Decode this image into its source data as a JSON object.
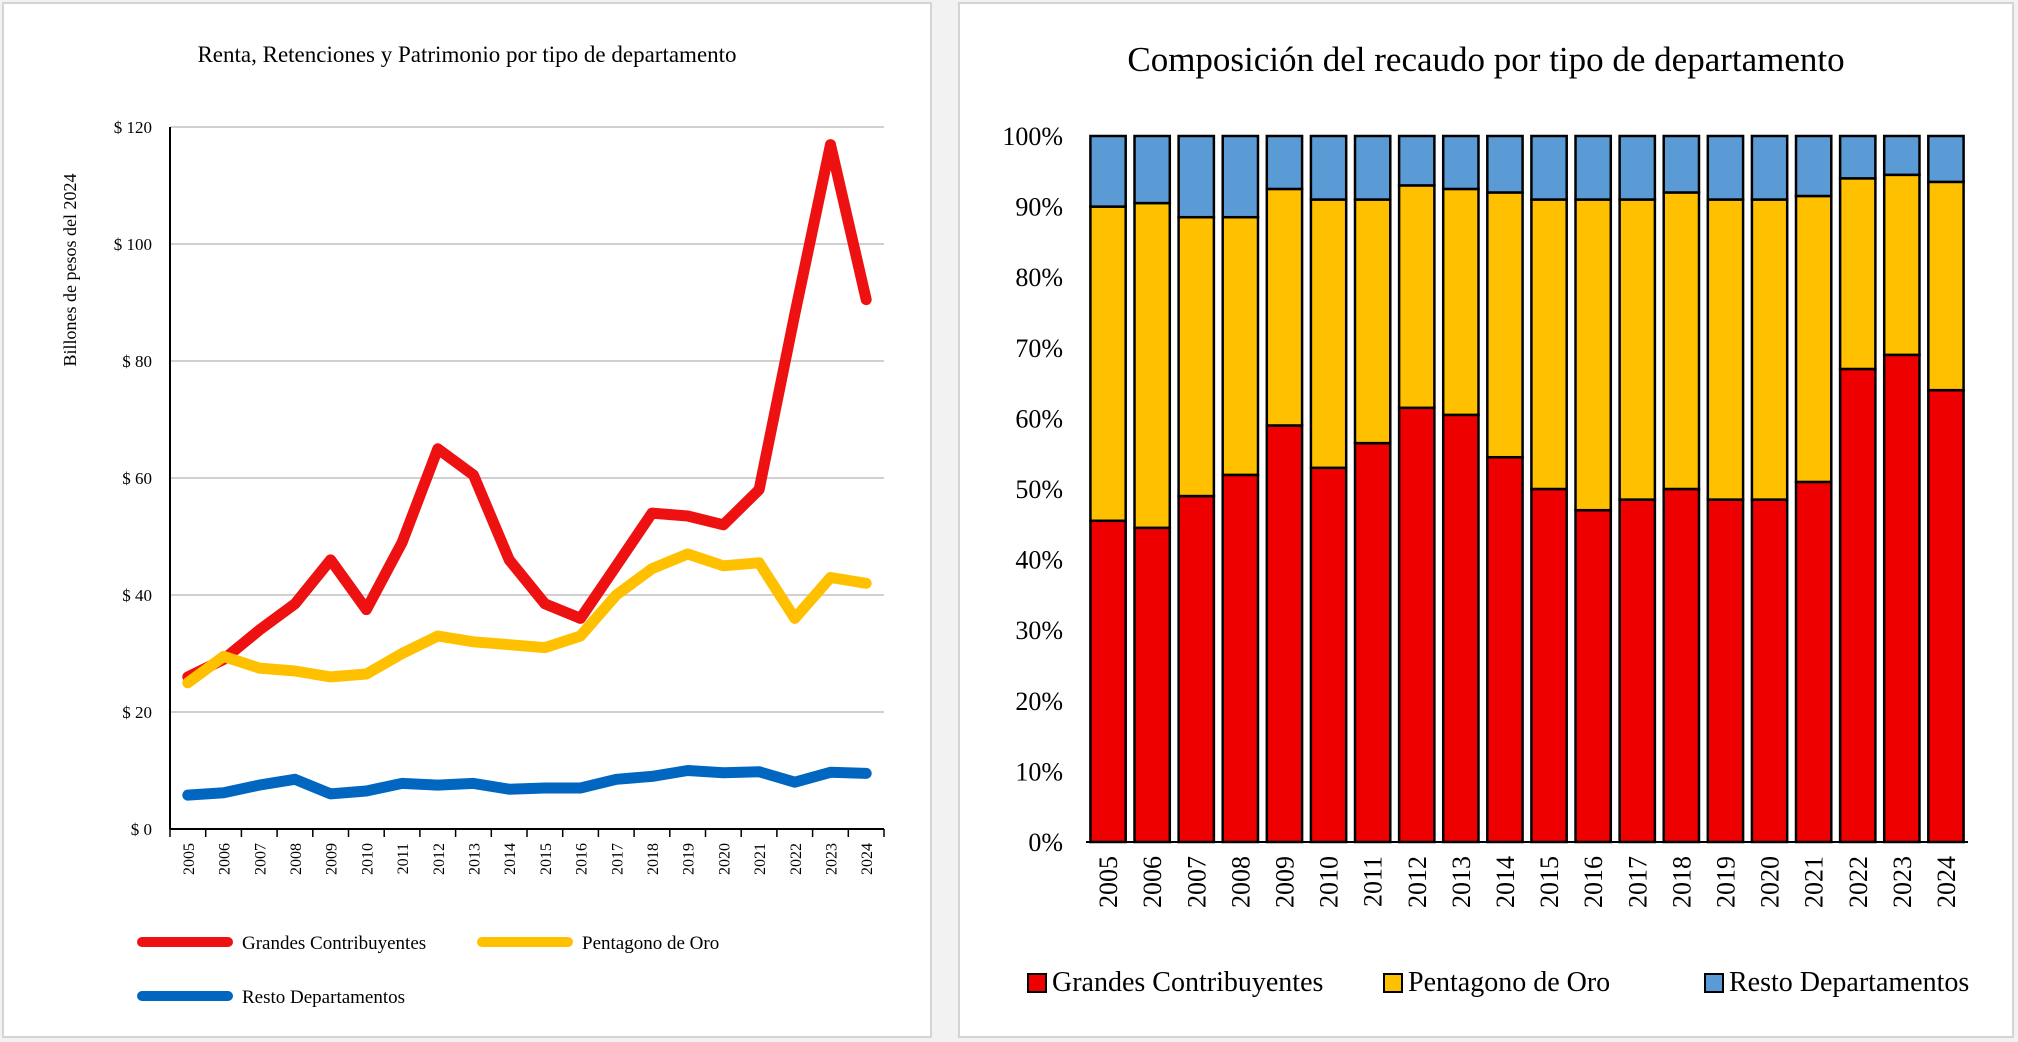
{
  "chart_data": [
    {
      "type": "line",
      "title": "Renta, Retenciones y Patrimonio por tipo de departamento",
      "ylabel": "Billones de pesos del 2024",
      "xlabel": "",
      "ylim": [
        0,
        120
      ],
      "ytick_labels": [
        "$ 0",
        "$ 20",
        "$ 40",
        "$ 60",
        "$ 80",
        "$ 100",
        "$ 120"
      ],
      "ytick_values": [
        0,
        20,
        40,
        60,
        80,
        100,
        120
      ],
      "grid": true,
      "legend_position": "bottom",
      "categories": [
        "2005",
        "2006",
        "2007",
        "2008",
        "2009",
        "2010",
        "2011",
        "2012",
        "2013",
        "2014",
        "2015",
        "2016",
        "2017",
        "2018",
        "2019",
        "2020",
        "2021",
        "2022",
        "2023",
        "2024"
      ],
      "series": [
        {
          "name": "Grandes Contribuyentes",
          "color": "#ee1111",
          "values": [
            26,
            29,
            34,
            38.5,
            46,
            37.5,
            49,
            65,
            60.5,
            46,
            38.5,
            36,
            45,
            54,
            53.5,
            52,
            58,
            88,
            117,
            90.5
          ]
        },
        {
          "name": "Pentagono de Oro",
          "color": "#ffc000",
          "values": [
            25,
            29.5,
            27.5,
            27,
            26,
            26.5,
            30,
            33,
            32,
            31.5,
            31,
            33,
            40,
            44.5,
            47,
            45,
            45.5,
            36,
            43,
            42
          ]
        },
        {
          "name": "Resto Departamentos",
          "color": "#0066c0",
          "values": [
            5.8,
            6.2,
            7.5,
            8.5,
            6,
            6.5,
            7.8,
            7.5,
            7.8,
            6.8,
            7,
            7,
            8.5,
            9,
            10,
            9.6,
            9.8,
            8,
            9.7,
            9.5
          ]
        }
      ]
    },
    {
      "type": "bar",
      "stacked": true,
      "title": "Composición del recaudo por tipo de departamento",
      "xlabel": "",
      "ylabel": "",
      "ylim": [
        0,
        100
      ],
      "ytick_labels": [
        "0%",
        "10%",
        "20%",
        "30%",
        "40%",
        "50%",
        "60%",
        "70%",
        "80%",
        "90%",
        "100%"
      ],
      "ytick_values": [
        0,
        10,
        20,
        30,
        40,
        50,
        60,
        70,
        80,
        90,
        100
      ],
      "grid": false,
      "legend_position": "bottom",
      "categories": [
        "2005",
        "2006",
        "2007",
        "2008",
        "2009",
        "2010",
        "2011",
        "2012",
        "2013",
        "2014",
        "2015",
        "2016",
        "2017",
        "2018",
        "2019",
        "2020",
        "2021",
        "2022",
        "2023",
        "2024"
      ],
      "series": [
        {
          "name": "Grandes Contribuyentes",
          "color": "#ee0000",
          "values": [
            45.5,
            44.5,
            49,
            52,
            59,
            53,
            56.5,
            61.5,
            60.5,
            54.5,
            50,
            47,
            48.5,
            50,
            48.5,
            48.5,
            51,
            67,
            69,
            64
          ]
        },
        {
          "name": "Pentagono de Oro",
          "color": "#ffc000",
          "values": [
            44.5,
            46,
            39.5,
            36.5,
            33.5,
            38,
            34.5,
            31.5,
            32,
            37.5,
            41,
            44,
            42.5,
            42,
            42.5,
            42.5,
            40.5,
            27,
            25.5,
            29.5
          ]
        },
        {
          "name": "Resto Departamentos",
          "color": "#5b9bd5",
          "values": [
            10,
            9.5,
            11.5,
            11.5,
            7.5,
            9,
            9,
            7,
            7.5,
            8,
            9,
            9,
            9,
            8,
            9,
            9,
            8.5,
            6,
            5.5,
            6.5
          ]
        }
      ]
    }
  ]
}
